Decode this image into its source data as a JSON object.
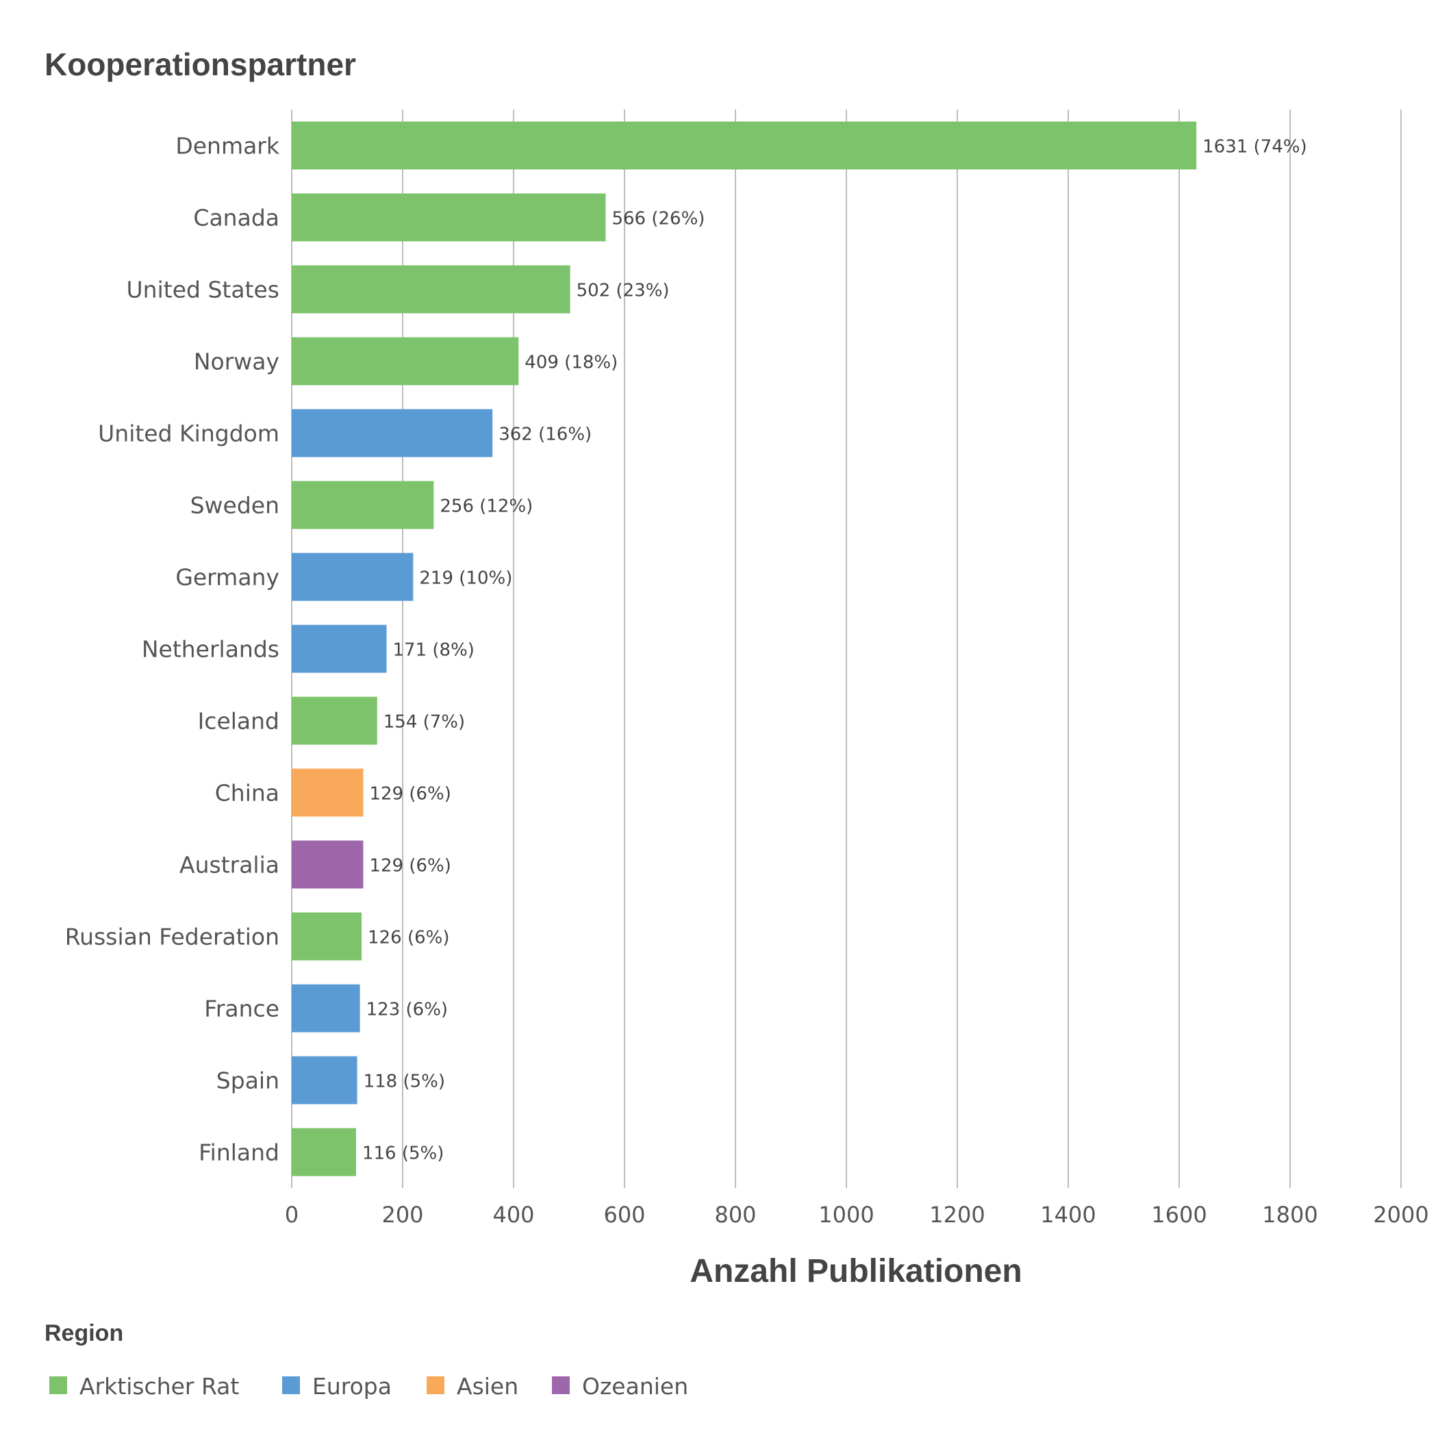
{
  "chart_data": {
    "type": "bar",
    "orientation": "horizontal",
    "title": "Kooperationspartner",
    "xlabel": "Anzahl Publikationen",
    "ylabel": "",
    "xlim": [
      0,
      2000
    ],
    "ticks": [
      "0",
      "200",
      "400",
      "600",
      "800",
      "1000",
      "1200",
      "1400",
      "1600",
      "1800",
      "2000"
    ],
    "grid": true,
    "categories": [
      "Denmark",
      "Canada",
      "United States",
      "Norway",
      "United Kingdom",
      "Sweden",
      "Germany",
      "Netherlands",
      "Iceland",
      "China",
      "Australia",
      "Russian Federation",
      "France",
      "Spain",
      "Finland"
    ],
    "values": [
      1631,
      566,
      502,
      409,
      362,
      256,
      219,
      171,
      154,
      129,
      129,
      126,
      123,
      118,
      116
    ],
    "value_labels": [
      "1631 (74%)",
      "566 (26%)",
      "502 (23%)",
      "409 (18%)",
      "362 (16%)",
      "256 (12%)",
      "219 (10%)",
      "171 (8%)",
      "154 (7%)",
      "129 (6%)",
      "129 (6%)",
      "126 (6%)",
      "123 (6%)",
      "118 (5%)",
      "116 (5%)"
    ],
    "regions": [
      "Arktischer Rat",
      "Arktischer Rat",
      "Arktischer Rat",
      "Arktischer Rat",
      "Europa",
      "Arktischer Rat",
      "Europa",
      "Europa",
      "Arktischer Rat",
      "Asien",
      "Ozeanien",
      "Arktischer Rat",
      "Europa",
      "Europa",
      "Arktischer Rat"
    ],
    "legend": {
      "title": "Region",
      "placement": "bottom-left",
      "items": [
        {
          "name": "Arktischer Rat",
          "color": "#7dc36b"
        },
        {
          "name": "Europa",
          "color": "#5b9bd5"
        },
        {
          "name": "Asien",
          "color": "#f8a95a"
        },
        {
          "name": "Ozeanien",
          "color": "#9e67ab"
        }
      ]
    }
  }
}
